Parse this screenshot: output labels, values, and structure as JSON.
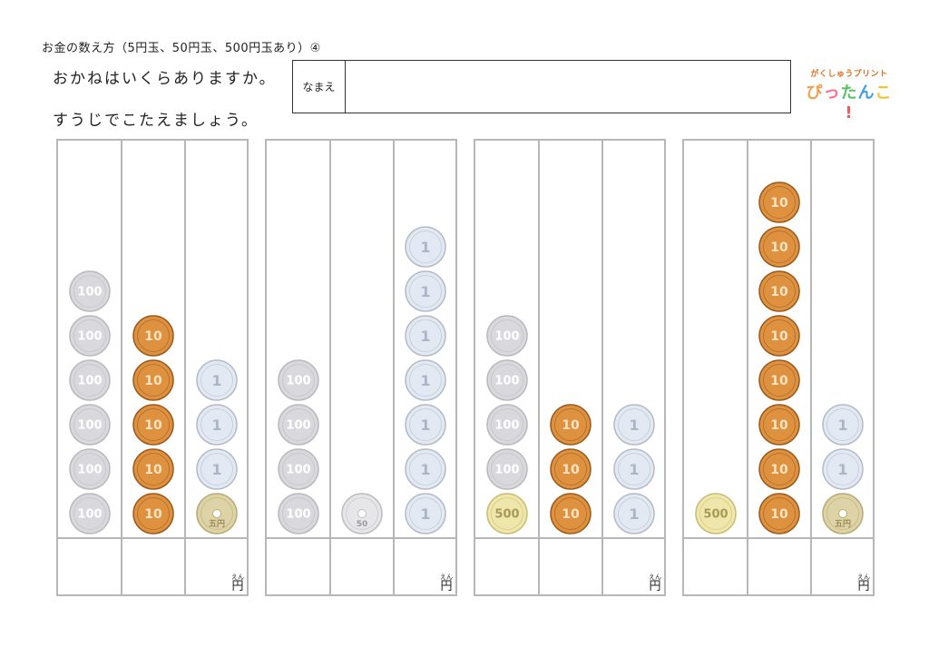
{
  "header": {
    "title": "お金の数え方（5円玉、50円玉、500円玉あり）④",
    "instruction_line1": "おかねはいくらありますか。",
    "instruction_line2": "すうじでこたえましょう。",
    "name_label": "なまえ",
    "logo_top": "がくしゅうプリント",
    "logo_main": [
      "ぴ",
      "っ",
      "た",
      "ん",
      "こ",
      "!"
    ]
  },
  "unit": {
    "kanji": "円",
    "ruby": "えん"
  },
  "coin_styles": {
    "100": {
      "label": "100",
      "fill": "#d9d9dd",
      "ring": "#b9b9bf",
      "text": "#ffffff",
      "hole": false
    },
    "10": {
      "label": "10",
      "fill": "#de9240",
      "ring": "#9c5a1e",
      "text": "#fbe3c2",
      "hole": false
    },
    "1": {
      "label": "1",
      "fill": "#e3e9f2",
      "ring": "#b4bcc8",
      "text": "#aab6c8",
      "hole": false
    },
    "5": {
      "label": "五円",
      "fill": "#ddd3a6",
      "ring": "#b8ab78",
      "text": "#9c8e58",
      "hole": true
    },
    "50": {
      "label": "50",
      "fill": "#e6e6e9",
      "ring": "#bdbdc2",
      "text": "#9a9aa0",
      "hole": true
    },
    "500": {
      "label": "500",
      "fill": "#efe6ac",
      "ring": "#cbbd74",
      "text": "#a69a55",
      "hole": false
    }
  },
  "panels": [
    {
      "columns": [
        {
          "coin": "100",
          "count": 6
        },
        {
          "coin": "10",
          "count": 5
        },
        {
          "coin": "1",
          "count": 3,
          "bottom_coin": "5"
        }
      ]
    },
    {
      "columns": [
        {
          "coin": "100",
          "count": 4
        },
        {
          "coin": "50",
          "count": 1
        },
        {
          "coin": "1",
          "count": 7
        }
      ]
    },
    {
      "columns": [
        {
          "coin": "100",
          "count": 4,
          "bottom_coin": "500"
        },
        {
          "coin": "10",
          "count": 3
        },
        {
          "coin": "1",
          "count": 3
        }
      ]
    },
    {
      "columns": [
        {
          "coin": "500",
          "count": 1
        },
        {
          "coin": "10",
          "count": 8
        },
        {
          "coin": "1",
          "count": 2,
          "bottom_coin": "5"
        }
      ]
    }
  ]
}
